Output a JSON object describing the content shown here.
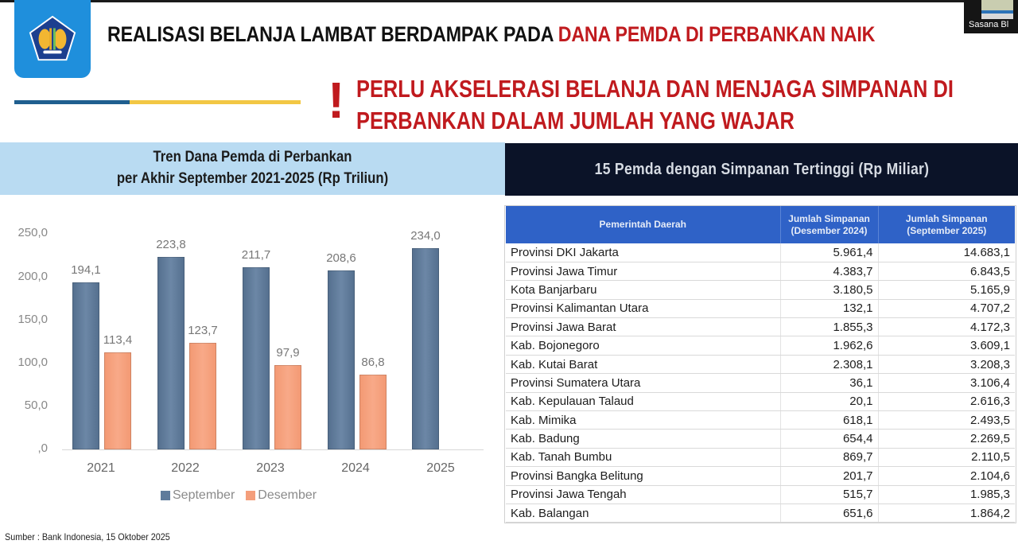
{
  "header": {
    "title_black": "REALISASI BELANJA LAMBAT BERDAMPAK PADA ",
    "title_red": "DANA PEMDA DI PERBANKAN NAIK",
    "alert_mark": "!",
    "alert_line1": "PERLU AKSELERASI BELANJA DAN MENJAGA SIMPANAN DI",
    "alert_line2": "PERBANKAN DALAM JUMLAH YANG WAJAR",
    "camera_label": "Sasana Bl"
  },
  "colors": {
    "brand_blue": "#1f8fdc",
    "alert_red": "#c01a1e",
    "september": "#607c9c",
    "desember": "#f5a07e",
    "table_header_blue": "#2f62c7",
    "table_title_bg": "#0b1328"
  },
  "chart_panel": {
    "title_line1": "Tren Dana Pemda di Perbankan",
    "title_line2": "per Akhir September 2021-2025 (Rp Triliun)"
  },
  "chart_data": {
    "type": "bar",
    "title": "Tren Dana Pemda di Perbankan per Akhir September 2021-2025 (Rp Triliun)",
    "xlabel": "",
    "ylabel": "Rp Triliun",
    "categories": [
      "2021",
      "2022",
      "2023",
      "2024",
      "2025"
    ],
    "series": [
      {
        "name": "September",
        "values": [
          194.1,
          223.8,
          211.7,
          208.6,
          234.0
        ],
        "labels": [
          "194,1",
          "223,8",
          "211,7",
          "208,6",
          "234,0"
        ]
      },
      {
        "name": "Desember",
        "values": [
          113.4,
          123.7,
          97.9,
          86.8,
          null
        ],
        "labels": [
          "113,4",
          "123,7",
          "97,9",
          "86,8",
          ""
        ]
      }
    ],
    "yticks": [
      "250,0",
      "200,0",
      "150,0",
      "100,0",
      "50,0",
      ",0"
    ],
    "ylim": [
      0,
      250
    ],
    "grid": false,
    "legend_position": "bottom"
  },
  "source": "Sumber : Bank Indonesia, 15 Oktober 2025",
  "table": {
    "title": "15 Pemda dengan Simpanan Tertinggi (Rp Miliar)",
    "columns": [
      "Pemerintah Daerah",
      "Jumlah Simpanan (Desember 2024)",
      "Jumlah Simpanan (September 2025)"
    ],
    "col2_line1": "Jumlah Simpanan",
    "col2_line2": "(Desember 2024)",
    "col3_line1": "Jumlah Simpanan",
    "col3_line2": "(September 2025)",
    "rows": [
      [
        "Provinsi DKI Jakarta",
        "5.961,4",
        "14.683,1"
      ],
      [
        "Provinsi Jawa Timur",
        "4.383,7",
        "6.843,5"
      ],
      [
        "Kota Banjarbaru",
        "3.180,5",
        "5.165,9"
      ],
      [
        "Provinsi Kalimantan Utara",
        "132,1",
        "4.707,2"
      ],
      [
        "Provinsi Jawa Barat",
        "1.855,3",
        "4.172,3"
      ],
      [
        "Kab. Bojonegoro",
        "1.962,6",
        "3.609,1"
      ],
      [
        "Kab. Kutai Barat",
        "2.308,1",
        "3.208,3"
      ],
      [
        "Provinsi Sumatera Utara",
        "36,1",
        "3.106,4"
      ],
      [
        "Kab. Kepulauan Talaud",
        "20,1",
        "2.616,3"
      ],
      [
        "Kab. Mimika",
        "618,1",
        "2.493,5"
      ],
      [
        "Kab. Badung",
        "654,4",
        "2.269,5"
      ],
      [
        "Kab. Tanah Bumbu",
        "869,7",
        "2.110,5"
      ],
      [
        "Provinsi Bangka Belitung",
        "201,7",
        "2.104,6"
      ],
      [
        "Provinsi Jawa Tengah",
        "515,7",
        "1.985,3"
      ],
      [
        "Kab. Balangan",
        "651,6",
        "1.864,2"
      ]
    ]
  }
}
